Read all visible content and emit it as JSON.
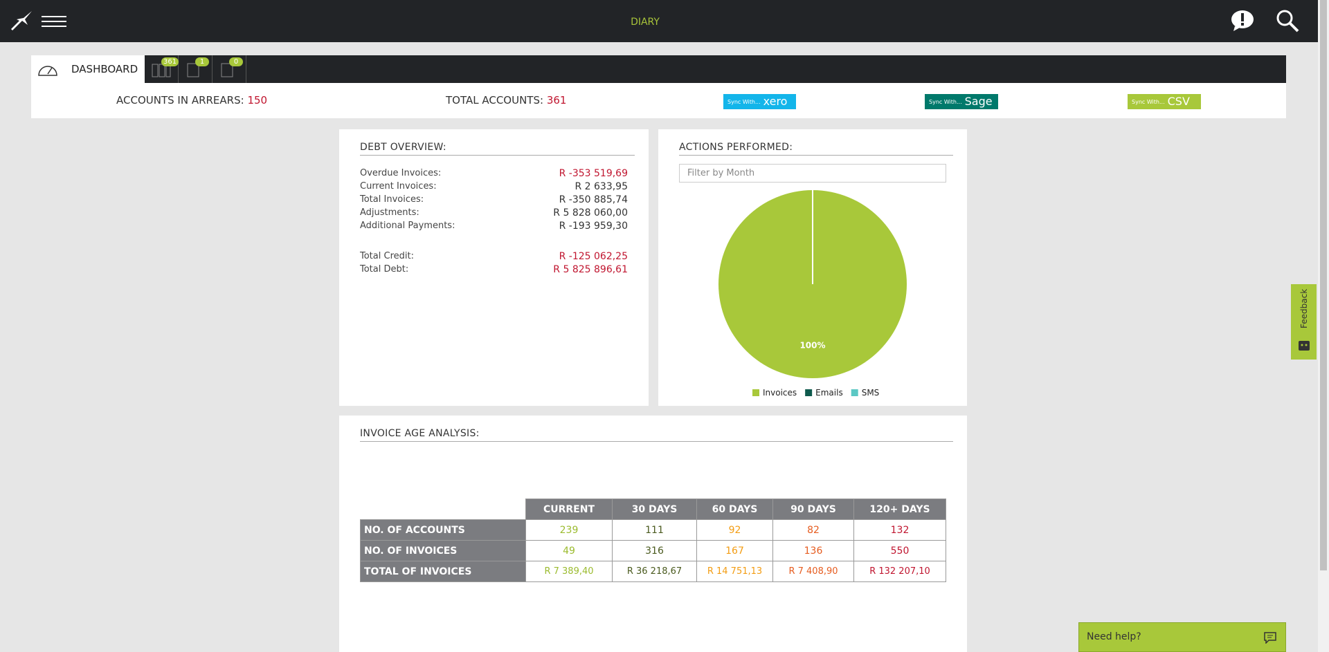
{
  "header": {
    "title": "DIARY"
  },
  "tabs": {
    "dashboard": "DASHBOARD",
    "badges": [
      "361",
      "1",
      "0"
    ]
  },
  "summary": {
    "arrears_label": "ACCOUNTS IN ARREARS:",
    "arrears_value": "150",
    "total_label": "TOTAL ACCOUNTS:",
    "total_value": "361",
    "sync": [
      {
        "prefix": "Sync With...",
        "name": "xero"
      },
      {
        "prefix": "Sync With...",
        "name": "Sage"
      },
      {
        "prefix": "Sync With...",
        "name": "CSV"
      }
    ]
  },
  "debt_overview": {
    "title": "DEBT OVERVIEW:",
    "rows": [
      [
        "Overdue Invoices:",
        "R -353 519,69"
      ],
      [
        "Current Invoices:",
        "R 2 633,95"
      ],
      [
        "Total Invoices:",
        "R -350 885,74"
      ],
      [
        "Adjustments:",
        "R 5 828 060,00"
      ],
      [
        "Additional Payments:",
        "R -193 959,30"
      ],
      [
        "Total Credit:",
        "R -125 062,25"
      ],
      [
        "Total Debt:",
        "R 5 825 896,61"
      ]
    ]
  },
  "actions": {
    "title": "ACTIONS PERFORMED:",
    "filter_placeholder": "Filter by Month",
    "chart_data": {
      "type": "pie",
      "categories": [
        "Invoices",
        "Emails",
        "SMS"
      ],
      "values": [
        100,
        0,
        0
      ],
      "value_labels": [
        "100%",
        null,
        null
      ],
      "colors": [
        "#a8c83a",
        "#0f5a4d",
        "#5bc8c4"
      ]
    }
  },
  "invoice_age": {
    "title": "INVOICE AGE ANALYSIS:",
    "table": {
      "columns": [
        "CURRENT",
        "30 DAYS",
        "60 DAYS",
        "90 DAYS",
        "120+ DAYS"
      ],
      "rows": [
        [
          "NO. OF ACCOUNTS",
          "239",
          "111",
          "92",
          "82",
          "132"
        ],
        [
          "NO. OF INVOICES",
          "49",
          "316",
          "167",
          "136",
          "550"
        ],
        [
          "TOTAL OF INVOICES",
          "R 7 389,40",
          "R 36 218,67",
          "R 14 751,13",
          "R 7 408,90",
          "R 132 207,10"
        ]
      ]
    }
  },
  "feedback": "Feedback",
  "help": "Need help?"
}
